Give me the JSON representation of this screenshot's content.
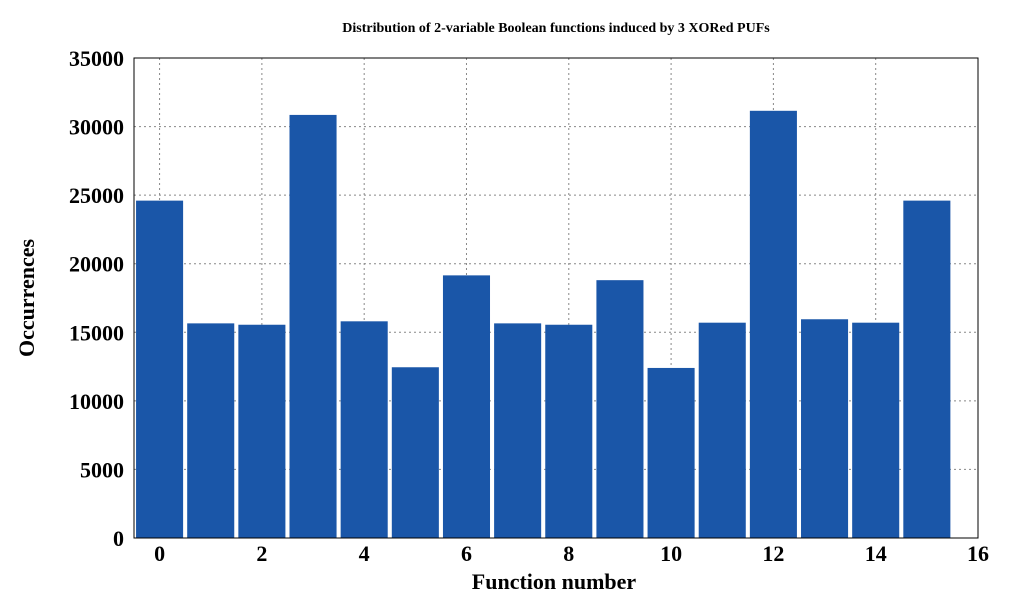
{
  "chart_data": {
    "type": "bar",
    "title": "Distribution of 2-variable Boolean functions induced by 3 XORed PUFs",
    "xlabel": "Function number",
    "ylabel": "Occurrences",
    "x": [
      0,
      1,
      2,
      3,
      4,
      5,
      6,
      7,
      8,
      9,
      10,
      11,
      12,
      13,
      14,
      15
    ],
    "values": [
      24600,
      15650,
      15550,
      30850,
      15800,
      12450,
      19150,
      15650,
      15550,
      18800,
      12400,
      15700,
      31150,
      15950,
      15700,
      24600
    ],
    "xlim": [
      -0.5,
      16
    ],
    "ylim": [
      0,
      35000
    ],
    "xticks": [
      "0",
      "2",
      "4",
      "6",
      "8",
      "10",
      "12",
      "14",
      "16"
    ],
    "yticks": [
      "0",
      "5000",
      "10000",
      "15000",
      "20000",
      "25000",
      "30000",
      "35000"
    ],
    "grid": true,
    "bar_color": "#1a56a8"
  }
}
